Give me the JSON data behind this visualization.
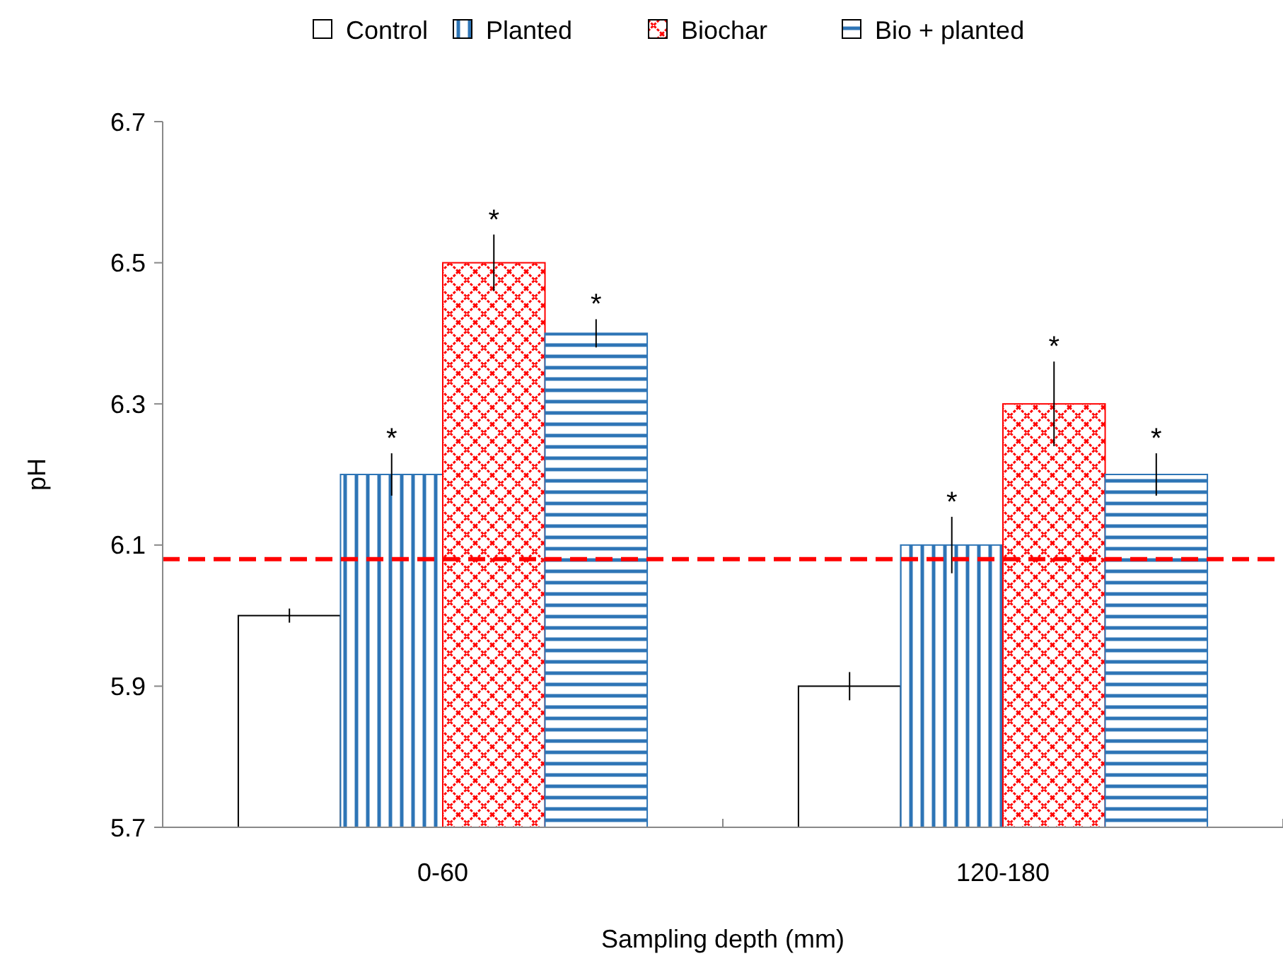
{
  "chart_data": {
    "type": "bar",
    "xlabel": "Sampling depth (mm)",
    "ylabel": "pH",
    "categories": [
      "0-60",
      "120-180"
    ],
    "series": [
      {
        "name": "Control",
        "color": "#ffffff",
        "values": [
          6.0,
          5.9
        ],
        "errors": [
          0.01,
          0.02
        ]
      },
      {
        "name": "Planted",
        "color": "#2e75b6",
        "values": [
          6.2,
          6.1
        ],
        "errors": [
          0.03,
          0.04
        ],
        "value_labels": [
          "*",
          "*"
        ]
      },
      {
        "name": "Biochar",
        "color": "#ff0000",
        "values": [
          6.5,
          6.3
        ],
        "errors": [
          0.04,
          0.06
        ],
        "value_labels": [
          "*",
          "*"
        ]
      },
      {
        "name": "Bio + planted",
        "color": "#2e75b6",
        "values": [
          6.4,
          6.2
        ],
        "errors": [
          0.02,
          0.03
        ],
        "value_labels": [
          "*",
          "*"
        ]
      }
    ],
    "ylim": [
      5.7,
      6.7
    ],
    "yticks": [
      {
        "value": 5.7,
        "label": "5.7"
      },
      {
        "value": 5.9,
        "label": "5.9"
      },
      {
        "value": 6.1,
        "label": "6.1"
      },
      {
        "value": 6.3,
        "label": "6.3"
      },
      {
        "value": 6.5,
        "label": "6.5"
      },
      {
        "value": 6.7,
        "label": "6.7"
      }
    ],
    "ref_lines": [
      {
        "axis": "y",
        "value": 6.08,
        "label": null,
        "color": "#ff0000",
        "line_style": "dashed"
      }
    ],
    "grid": false,
    "legend": "top"
  }
}
